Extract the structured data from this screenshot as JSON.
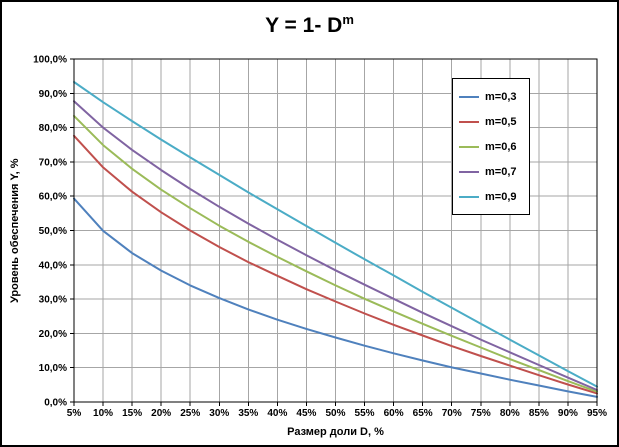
{
  "chart": {
    "title_base": "Y = 1- D",
    "title_exp": "m"
  },
  "chart_data": {
    "type": "line",
    "title": "Y = 1- D^m",
    "xlabel": "Размер доли  D, %",
    "ylabel": "Уровень обеспечения Y, %",
    "xlim": [
      5,
      95
    ],
    "ylim": [
      0,
      100
    ],
    "grid": true,
    "legend_position": "right-inside",
    "x": [
      5,
      10,
      15,
      20,
      25,
      30,
      35,
      40,
      45,
      50,
      55,
      60,
      65,
      70,
      75,
      80,
      85,
      90,
      95
    ],
    "x_tick_labels": [
      "5%",
      "10%",
      "15%",
      "20%",
      "25%",
      "30%",
      "35%",
      "40%",
      "45%",
      "50%",
      "55%",
      "60%",
      "65%",
      "70%",
      "75%",
      "80%",
      "85%",
      "90%",
      "95%"
    ],
    "y_ticks": [
      0,
      10,
      20,
      30,
      40,
      50,
      60,
      70,
      80,
      90,
      100
    ],
    "y_tick_labels": [
      "0,0%",
      "10,0%",
      "20,0%",
      "30,0%",
      "40,0%",
      "50,0%",
      "60,0%",
      "70,0%",
      "80,0%",
      "90,0%",
      "100,0%"
    ],
    "series": [
      {
        "name": "m=0,3",
        "m": 0.3,
        "color": "#4F81BD",
        "values": [
          59.3,
          49.9,
          43.4,
          38.3,
          34.0,
          30.3,
          27.0,
          24.0,
          21.3,
          18.8,
          16.4,
          14.2,
          12.1,
          10.1,
          8.3,
          6.5,
          4.8,
          3.1,
          1.5
        ]
      },
      {
        "name": "m=0,5",
        "m": 0.5,
        "color": "#C0504D",
        "values": [
          77.6,
          68.4,
          61.3,
          55.3,
          50.0,
          45.2,
          40.8,
          36.8,
          32.9,
          29.3,
          25.8,
          22.5,
          19.4,
          16.3,
          13.4,
          10.6,
          7.8,
          5.1,
          2.5
        ]
      },
      {
        "name": "m=0,6",
        "m": 0.6,
        "color": "#9BBB59",
        "values": [
          83.4,
          74.9,
          68.0,
          61.9,
          56.5,
          51.4,
          46.7,
          42.3,
          38.1,
          34.0,
          30.1,
          26.4,
          22.8,
          19.3,
          15.9,
          12.5,
          9.3,
          6.1,
          3.0
        ]
      },
      {
        "name": "m=0,7",
        "m": 0.7,
        "color": "#8064A2",
        "values": [
          87.7,
          80.0,
          73.5,
          67.6,
          62.1,
          56.9,
          52.0,
          47.3,
          42.8,
          38.4,
          34.2,
          30.1,
          26.0,
          22.1,
          18.2,
          14.5,
          10.8,
          7.1,
          3.5
        ]
      },
      {
        "name": "m=0,9",
        "m": 0.9,
        "color": "#4BACC6",
        "values": [
          93.3,
          87.4,
          81.9,
          76.5,
          71.3,
          66.2,
          61.1,
          56.2,
          51.3,
          46.4,
          41.6,
          36.9,
          32.1,
          27.5,
          22.8,
          18.2,
          13.6,
          9.0,
          4.5
        ]
      }
    ]
  },
  "colors": {
    "gridline": "#A6A6A6",
    "plot_border": "#000000",
    "axis_tick": "#000000",
    "plot_background": "#FFFFFF"
  }
}
